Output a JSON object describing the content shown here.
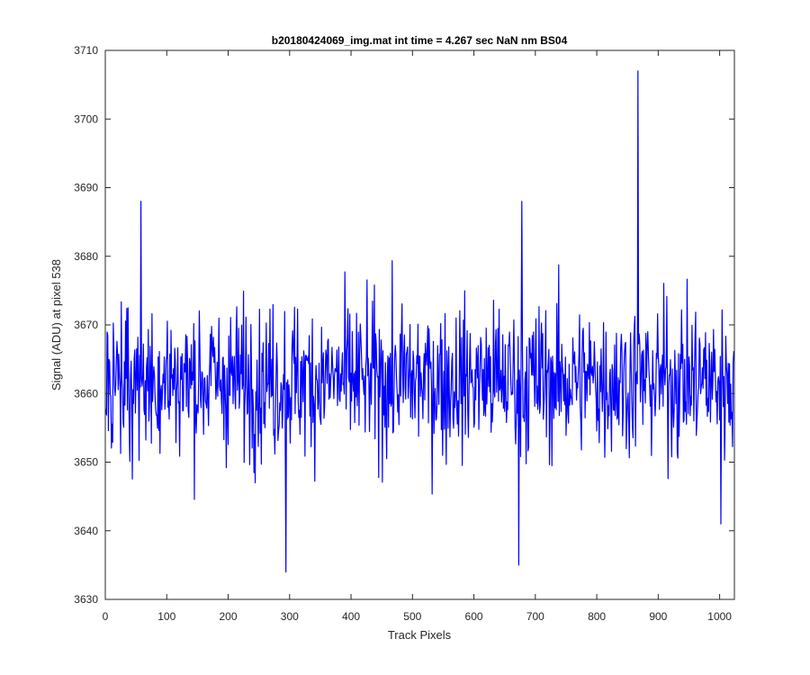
{
  "chart_data": {
    "type": "line",
    "title": "b20180424069_img.mat int time = 4.267 sec  NaN nm BS04",
    "xlabel": "Track Pixels",
    "ylabel": "Signal (ADU) at pixel 538",
    "xlim": [
      0,
      1024
    ],
    "ylim": [
      3630,
      3710
    ],
    "xticks": [
      0,
      100,
      200,
      300,
      400,
      500,
      600,
      700,
      800,
      900,
      1000
    ],
    "yticks": [
      3630,
      3640,
      3650,
      3660,
      3670,
      3680,
      3690,
      3700,
      3710
    ],
    "grid": false,
    "series": [
      {
        "color": "#0000ff",
        "x_start": 1,
        "x_step": 1,
        "approx_mean": 3662,
        "approx_std": 5.5,
        "notable_points": [
          {
            "x": 58,
            "y": 3688
          },
          {
            "x": 294,
            "y": 3634
          },
          {
            "x": 673,
            "y": 3635
          },
          {
            "x": 678,
            "y": 3688
          },
          {
            "x": 867,
            "y": 3707
          },
          {
            "x": 1002,
            "y": 3641
          }
        ]
      }
    ]
  }
}
